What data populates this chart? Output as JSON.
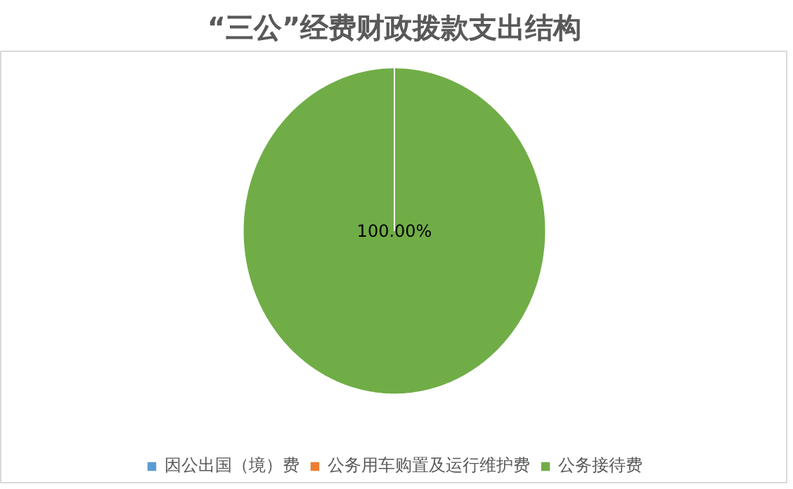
{
  "chart_data": {
    "type": "pie",
    "title": "“三公”经费财政拨款支出结构",
    "categories": [
      "因公出国（境）费",
      "公务用车购置及运行维护费",
      "公务接待费"
    ],
    "values": [
      0,
      0,
      100
    ],
    "colors": [
      "#5b9bd5",
      "#ed7d31",
      "#70ad47"
    ],
    "value_labels": [
      null,
      null,
      "100.00%"
    ],
    "legend": "bottom"
  }
}
